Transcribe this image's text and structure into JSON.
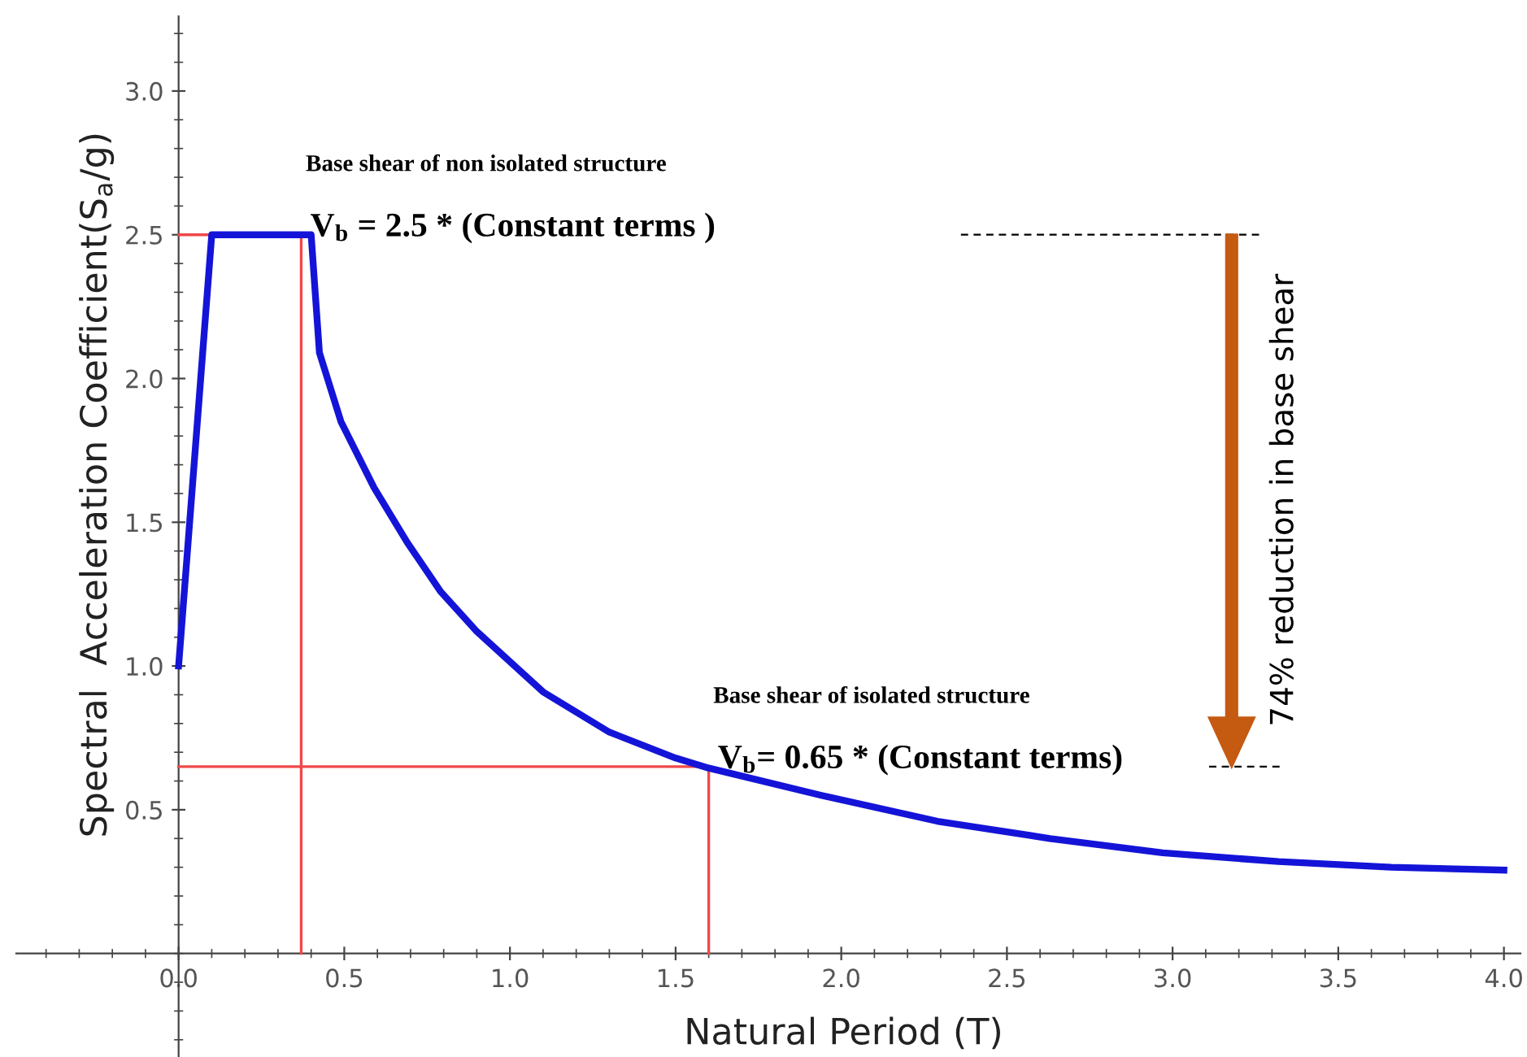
{
  "chart_data": {
    "type": "line",
    "xlabel": "Natural Period (T)",
    "ylabel": "Spectral  Acceleration Coefficient(S$_{a}$/g)",
    "xlim": [
      -0.49,
      4.05
    ],
    "ylim": [
      -0.36,
      3.26
    ],
    "xticks": [
      {
        "value": 0,
        "label": "0.0"
      },
      {
        "value": 0.5,
        "label": "0.5"
      },
      {
        "value": 1,
        "label": "1.0"
      },
      {
        "value": 1.5,
        "label": "1.5"
      },
      {
        "value": 2,
        "label": "2.0"
      },
      {
        "value": 2.5,
        "label": "2.5"
      },
      {
        "value": 3,
        "label": "3.0"
      },
      {
        "value": 3.5,
        "label": "3.5"
      },
      {
        "value": 4,
        "label": "4.0"
      }
    ],
    "yticks": [
      {
        "value": 0.5,
        "label": "0.5"
      },
      {
        "value": 1,
        "label": "1.0"
      },
      {
        "value": 1.5,
        "label": "1.5"
      },
      {
        "value": 2,
        "label": "2.0"
      },
      {
        "value": 2.5,
        "label": "2.5"
      },
      {
        "value": 3,
        "label": "3.0"
      }
    ],
    "grid": false,
    "marker": "none",
    "line_style": "solid",
    "series": [
      {
        "color": "#1414d8",
        "x": [
          0,
          0.1,
          0.4,
          0.425,
          0.49,
          0.59,
          0.69,
          0.79,
          0.9,
          1.1,
          1.3,
          1.5,
          1.6,
          1.94,
          2.29,
          2.63,
          2.97,
          3.32,
          3.66,
          4.0
        ],
        "values": [
          1.0,
          2.5,
          2.5,
          2.09,
          1.85,
          1.62,
          1.43,
          1.26,
          1.12,
          0.91,
          0.77,
          0.68,
          0.645,
          0.55,
          0.46,
          0.4,
          0.35,
          0.32,
          0.3,
          0.29
        ]
      },
      {
        "color": "#f04848",
        "x": [
          0,
          0.37,
          0.37
        ],
        "values": [
          2.5,
          2.5,
          0
        ]
      },
      {
        "color": "#f04848",
        "x": [
          0,
          1.6,
          1.6
        ],
        "values": [
          0.65,
          0.65,
          0
        ]
      }
    ],
    "annotations": [
      "Base shear of non isolated structure",
      {
        "text": "V$_{b}$ = 2.5 * (Constant terms )",
        "x": 0.37,
        "y": 2.5
      },
      "Base shear of isolated structure",
      {
        "text": "V$_{b}$= 0.65 * (Constant terms)",
        "x": 1.6,
        "y": 0.65
      },
      "74% reduction in base shear"
    ]
  }
}
